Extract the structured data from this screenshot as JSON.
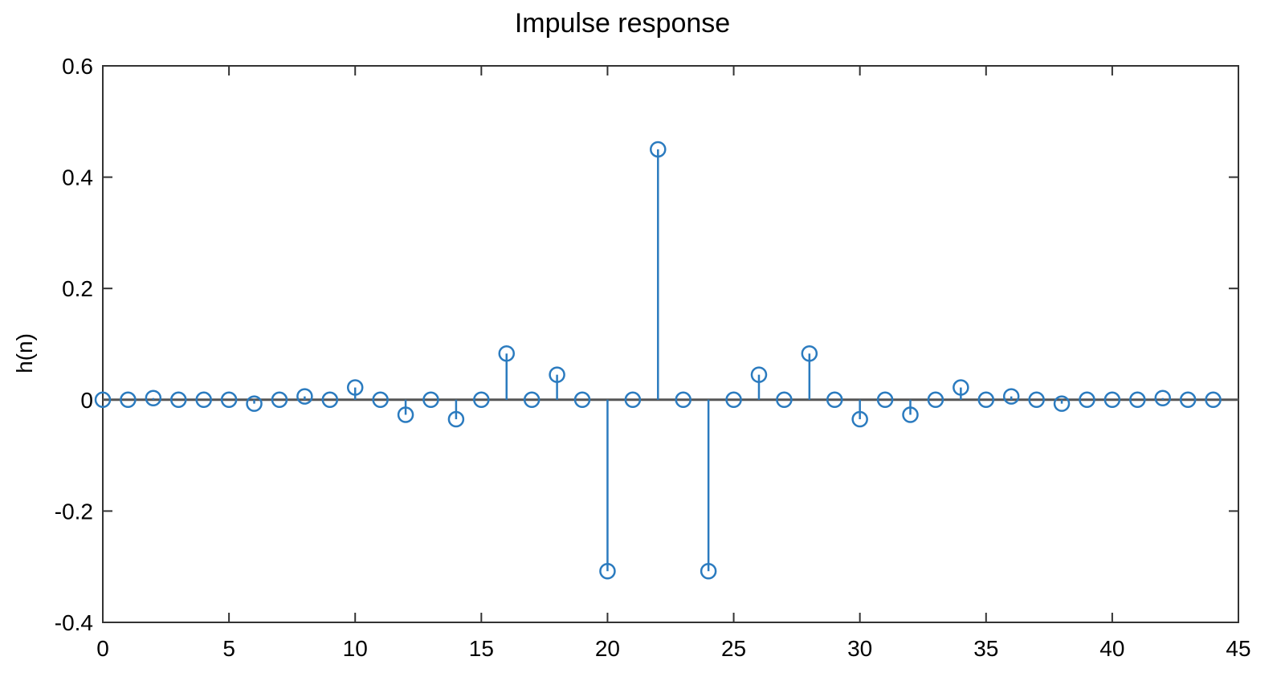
{
  "chart_data": {
    "type": "stem",
    "title": "Impulse response",
    "xlabel": "",
    "ylabel": "h(n)",
    "xlim": [
      0,
      45
    ],
    "ylim": [
      -0.4,
      0.6
    ],
    "xticks": [
      0,
      5,
      10,
      15,
      20,
      25,
      30,
      35,
      40,
      45
    ],
    "xtick_labels": [
      "0",
      "5",
      "10",
      "15",
      "20",
      "25",
      "30",
      "35",
      "40",
      "45"
    ],
    "yticks": [
      -0.4,
      -0.2,
      0,
      0.2,
      0.4,
      0.6
    ],
    "ytick_labels": [
      "-0.4",
      "-0.2",
      "0",
      "0.2",
      "0.4",
      "0.6"
    ],
    "grid": false,
    "color": "#2b7bbf",
    "x": [
      0,
      1,
      2,
      3,
      4,
      5,
      6,
      7,
      8,
      9,
      10,
      11,
      12,
      13,
      14,
      15,
      16,
      17,
      18,
      19,
      20,
      21,
      22,
      23,
      24,
      25,
      26,
      27,
      28,
      29,
      30,
      31,
      32,
      33,
      34,
      35,
      36,
      37,
      38,
      39,
      40,
      41,
      42,
      43,
      44
    ],
    "values": [
      0,
      0,
      0.003,
      0,
      0,
      0,
      -0.007,
      0,
      0.006,
      0,
      0.022,
      0,
      -0.027,
      0,
      -0.035,
      0,
      0.083,
      0,
      0.045,
      0,
      -0.308,
      0,
      0.45,
      0,
      -0.308,
      0,
      0.045,
      0,
      0.083,
      0,
      -0.035,
      0,
      -0.027,
      0,
      0.022,
      0,
      0.006,
      0,
      -0.007,
      0,
      0,
      0,
      0.003,
      0,
      0
    ]
  }
}
